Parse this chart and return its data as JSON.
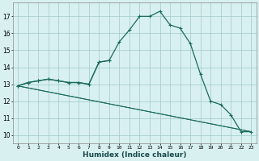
{
  "title": "",
  "xlabel": "Humidex (Indice chaleur)",
  "bg_color": "#d8f0f0",
  "grid_color": "#a0c8c8",
  "line_color": "#1a6b5a",
  "ylim": [
    9.5,
    17.8
  ],
  "xlim": [
    -0.5,
    23.5
  ],
  "yticks": [
    10,
    11,
    12,
    13,
    14,
    15,
    16,
    17
  ],
  "xticks": [
    0,
    1,
    2,
    3,
    4,
    5,
    6,
    7,
    8,
    9,
    10,
    11,
    12,
    13,
    14,
    15,
    16,
    17,
    18,
    19,
    20,
    21,
    22,
    23
  ],
  "series_main": {
    "x": [
      0,
      1,
      2,
      3,
      4,
      5,
      6,
      7,
      8,
      9,
      10,
      11,
      12,
      13,
      14,
      15,
      16,
      17,
      18,
      19,
      20,
      21,
      22,
      23
    ],
    "y": [
      12.9,
      13.1,
      13.2,
      13.3,
      13.2,
      13.1,
      13.1,
      13.0,
      14.3,
      14.4,
      15.5,
      16.2,
      17.0,
      17.0,
      17.3,
      16.5,
      16.3,
      15.4,
      13.6,
      12.0,
      11.8,
      11.2,
      10.2,
      10.2
    ]
  },
  "series_partial": {
    "x": [
      0,
      1,
      2,
      3,
      4,
      5,
      6,
      7,
      8,
      9
    ],
    "y": [
      12.9,
      13.1,
      13.2,
      13.3,
      13.2,
      13.1,
      13.1,
      13.0,
      14.3,
      14.4
    ]
  },
  "series_line1": {
    "x": [
      0,
      23
    ],
    "y": [
      12.9,
      10.2
    ]
  },
  "series_line2": {
    "x": [
      0,
      23
    ],
    "y": [
      12.9,
      10.2
    ]
  }
}
